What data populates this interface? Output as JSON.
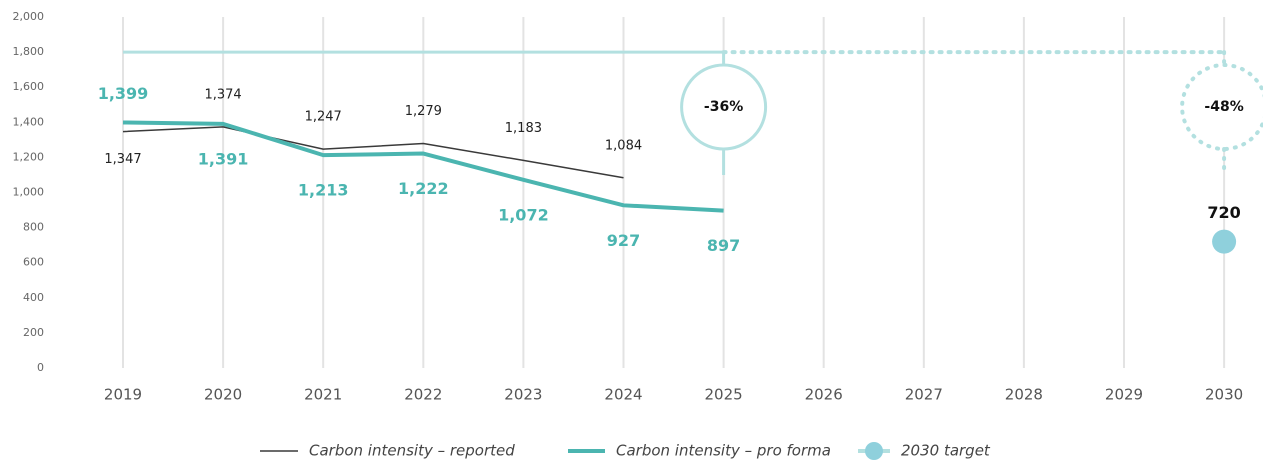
{
  "chart_data": {
    "type": "line",
    "categories": [
      "2019",
      "2020",
      "2021",
      "2022",
      "2023",
      "2024",
      "2025",
      "2026",
      "2027",
      "2028",
      "2029",
      "2030"
    ],
    "series": [
      {
        "name": "Carbon intensity – reported",
        "color": "#3a3a3a",
        "values": [
          1347,
          1374,
          1247,
          1279,
          1183,
          1084,
          null,
          null,
          null,
          null,
          null,
          null
        ],
        "value_labels": [
          "1,347",
          "1,374",
          "1,247",
          "1,279",
          "1,183",
          "1,084",
          null,
          null,
          null,
          null,
          null,
          null
        ]
      },
      {
        "name": "Carbon intensity – pro forma",
        "color": "#4bb5b0",
        "values": [
          1399,
          1391,
          1213,
          1222,
          1072,
          927,
          897,
          null,
          null,
          null,
          null,
          null
        ],
        "value_labels": [
          "1,399",
          "1,391",
          "1,213",
          "1,222",
          "1,072",
          "927",
          "897",
          null,
          null,
          null,
          null,
          null
        ]
      },
      {
        "name": "2030 target",
        "color": "#8fd0dc",
        "values": [
          null,
          null,
          null,
          null,
          null,
          null,
          null,
          null,
          null,
          null,
          null,
          720
        ]
      }
    ],
    "reference_line": {
      "value": 1800,
      "color": "#b3e0e0"
    },
    "annotations": [
      {
        "label": "-36%",
        "category": 6,
        "dashed": false
      },
      {
        "label": "-48%",
        "category": 11,
        "dashed": true
      }
    ],
    "ylim": [
      0,
      2000
    ],
    "yticks": [
      0,
      200,
      400,
      600,
      800,
      {
        "value": 1000,
        "label": "1,000"
      },
      {
        "value": 1200,
        "label": "1,200"
      },
      {
        "value": 1400,
        "label": "1,400"
      },
      {
        "value": 1600,
        "label": "1,600"
      },
      {
        "value": 1800,
        "label": "1,800"
      },
      {
        "value": 2000,
        "label": "2,000"
      }
    ],
    "grid": true
  }
}
